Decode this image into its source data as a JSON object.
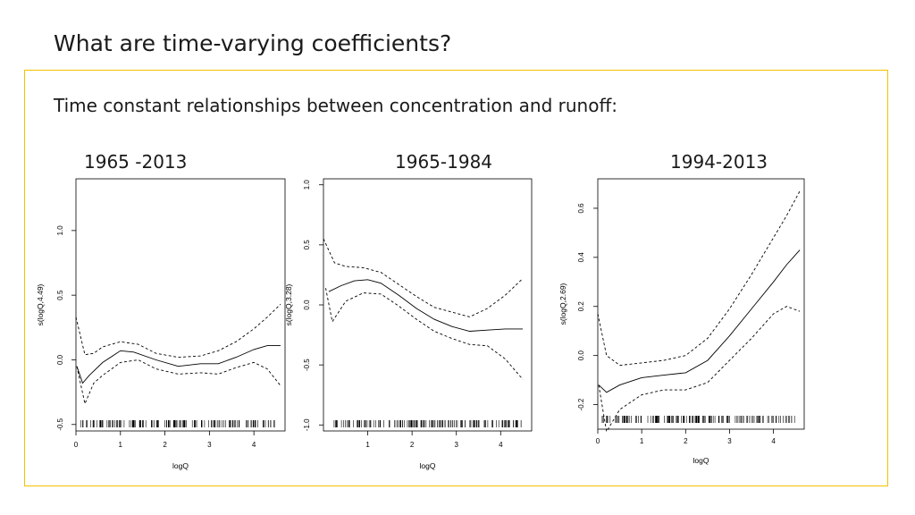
{
  "slide": {
    "title": "What are time-varying coefficients?",
    "subtitle": "Time constant relationships between concentration and runoff:"
  },
  "colors": {
    "accent": "#f2c200",
    "line": "#000000"
  },
  "chart_data": [
    {
      "type": "line",
      "title": "1965 -2013",
      "xlabel": "logQ",
      "ylabel": "s(logQ,4.49)",
      "xlim": [
        0,
        4.7
      ],
      "ylim": [
        -0.55,
        1.4
      ],
      "xticks": [
        "0",
        "1",
        "2",
        "3",
        "4"
      ],
      "yticks": [
        "-0.5",
        "0.0",
        "0.5",
        "1.0"
      ],
      "series": [
        {
          "name": "fit",
          "style": "solid",
          "x": [
            0.02,
            0.15,
            0.3,
            0.6,
            1.0,
            1.3,
            1.8,
            2.3,
            2.8,
            3.2,
            3.6,
            4.0,
            4.3,
            4.6
          ],
          "y": [
            -0.05,
            -0.18,
            -0.12,
            -0.02,
            0.07,
            0.06,
            0.0,
            -0.05,
            -0.03,
            -0.03,
            0.02,
            0.08,
            0.11,
            0.11
          ]
        },
        {
          "name": "upper",
          "style": "dashed",
          "x": [
            0.0,
            0.2,
            0.4,
            0.6,
            1.0,
            1.4,
            1.8,
            2.3,
            2.8,
            3.2,
            3.6,
            4.0,
            4.3,
            4.6
          ],
          "y": [
            0.33,
            0.04,
            0.05,
            0.1,
            0.14,
            0.12,
            0.05,
            0.02,
            0.03,
            0.07,
            0.14,
            0.24,
            0.33,
            0.43
          ]
        },
        {
          "name": "lower",
          "style": "dashed",
          "x": [
            0.02,
            0.2,
            0.4,
            0.6,
            1.0,
            1.4,
            1.8,
            2.3,
            2.8,
            3.2,
            3.6,
            4.0,
            4.3,
            4.6
          ],
          "y": [
            -0.05,
            -0.34,
            -0.18,
            -0.12,
            -0.02,
            0.0,
            -0.07,
            -0.11,
            -0.1,
            -0.11,
            -0.06,
            -0.02,
            -0.07,
            -0.2
          ]
        }
      ]
    },
    {
      "type": "line",
      "title": "1965-1984",
      "xlabel": "logQ",
      "ylabel": "s(logQ,3.28)",
      "xlim": [
        0,
        4.7
      ],
      "ylim": [
        -1.05,
        1.05
      ],
      "xticks": [
        "1",
        "2",
        "3",
        "4"
      ],
      "yticks": [
        "-1.0",
        "-0.5",
        "0.0",
        "0.5",
        "1.0"
      ],
      "series": [
        {
          "name": "fit",
          "style": "solid",
          "x": [
            0.12,
            0.4,
            0.7,
            1.0,
            1.3,
            1.7,
            2.1,
            2.5,
            2.9,
            3.3,
            3.7,
            4.1,
            4.5
          ],
          "y": [
            0.11,
            0.16,
            0.2,
            0.21,
            0.18,
            0.08,
            -0.03,
            -0.12,
            -0.18,
            -0.22,
            -0.21,
            -0.2,
            -0.2
          ]
        },
        {
          "name": "upper",
          "style": "dashed",
          "x": [
            0.0,
            0.25,
            0.5,
            0.9,
            1.3,
            1.7,
            2.1,
            2.5,
            2.9,
            3.3,
            3.7,
            4.1,
            4.5
          ],
          "y": [
            0.55,
            0.35,
            0.32,
            0.31,
            0.27,
            0.17,
            0.07,
            -0.02,
            -0.06,
            -0.1,
            -0.03,
            0.08,
            0.22
          ]
        },
        {
          "name": "lower",
          "style": "dashed",
          "x": [
            0.05,
            0.2,
            0.5,
            0.9,
            1.3,
            1.7,
            2.1,
            2.5,
            2.9,
            3.3,
            3.7,
            4.1,
            4.5
          ],
          "y": [
            0.14,
            -0.14,
            0.03,
            0.1,
            0.09,
            -0.01,
            -0.12,
            -0.22,
            -0.28,
            -0.33,
            -0.34,
            -0.45,
            -0.62
          ]
        }
      ]
    },
    {
      "type": "line",
      "title": "1994-2013",
      "xlabel": "logQ",
      "ylabel": "s(logQ,2.69)",
      "xlim": [
        0,
        4.7
      ],
      "ylim": [
        -0.3,
        0.72
      ],
      "xticks": [
        "0",
        "1",
        "2",
        "3",
        "4"
      ],
      "yticks": [
        "-0.2",
        "0.0",
        "0.2",
        "0.4",
        "0.6"
      ],
      "series": [
        {
          "name": "fit",
          "style": "solid",
          "x": [
            0.02,
            0.2,
            0.5,
            1.0,
            1.5,
            2.0,
            2.5,
            3.0,
            3.5,
            4.0,
            4.3,
            4.6
          ],
          "y": [
            -0.12,
            -0.15,
            -0.12,
            -0.09,
            -0.08,
            -0.07,
            -0.02,
            0.08,
            0.19,
            0.3,
            0.37,
            0.43
          ]
        },
        {
          "name": "upper",
          "style": "dashed",
          "x": [
            0.0,
            0.2,
            0.5,
            1.0,
            1.5,
            2.0,
            2.5,
            3.0,
            3.5,
            4.0,
            4.3,
            4.6
          ],
          "y": [
            0.17,
            0.0,
            -0.04,
            -0.03,
            -0.02,
            0.0,
            0.07,
            0.19,
            0.33,
            0.48,
            0.57,
            0.67
          ]
        },
        {
          "name": "lower",
          "style": "dashed",
          "x": [
            0.02,
            0.2,
            0.5,
            1.0,
            1.5,
            2.0,
            2.5,
            3.0,
            3.5,
            4.0,
            4.3,
            4.6
          ],
          "y": [
            -0.12,
            -0.31,
            -0.22,
            -0.16,
            -0.14,
            -0.14,
            -0.11,
            -0.02,
            0.07,
            0.17,
            0.2,
            0.18
          ]
        }
      ]
    }
  ]
}
